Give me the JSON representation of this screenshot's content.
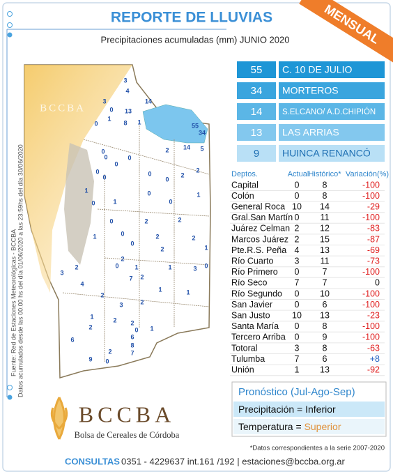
{
  "header": {
    "title": "REPORTE DE LLUVIAS",
    "subtitle": "Precipitaciones acumuladas (mm) JUNIO 2020",
    "badge": "MENSUAL"
  },
  "side_note": {
    "source": "Fuente: Red de Estaciones Meteorológicas - BCCBA",
    "period": "Datos acumulados desde las 00:00 hs del día 01/06/2020 a las 23:59hs del día 30/06/2020"
  },
  "map": {
    "watermark": "BCCBA",
    "stations": [
      "3",
      "4",
      "3",
      "0",
      "13",
      "14",
      "1",
      "8",
      "1",
      "0",
      "55",
      "34",
      "0",
      "0",
      "0",
      "0",
      "2",
      "14",
      "5",
      "0",
      "0",
      "0",
      "2",
      "2",
      "1",
      "0",
      "0",
      "1",
      "0",
      "0",
      "1",
      "0",
      "2",
      "2",
      "1",
      "0",
      "2",
      "2",
      "0",
      "2",
      "1",
      "2",
      "0",
      "1",
      "3",
      "1",
      "3",
      "2",
      "7",
      "2",
      "4",
      "1",
      "3",
      "2",
      "2",
      "1",
      "0",
      "1",
      "2",
      "2",
      "2",
      "0",
      "6",
      "6",
      "8",
      "1",
      "7",
      "2",
      "9",
      "0"
    ]
  },
  "ranking": [
    {
      "value": "55",
      "station": "C. 10 DE JULIO"
    },
    {
      "value": "34",
      "station": "MORTEROS"
    },
    {
      "value": "14",
      "station": "S.ELCANO/ A.D.CHIPIÓN"
    },
    {
      "value": "13",
      "station": "LAS ARRIAS"
    },
    {
      "value": "9",
      "station": "HUINCA RENANCÓ"
    }
  ],
  "table": {
    "headers": [
      "Deptos.",
      "Actual",
      "Histórico*",
      "Variación(%)"
    ],
    "rows": [
      [
        "Capital",
        "0",
        "8",
        "-100"
      ],
      [
        "Colón",
        "0",
        "8",
        "-100"
      ],
      [
        "General Roca",
        "10",
        "14",
        "-29"
      ],
      [
        "Gral.San Martín",
        "0",
        "11",
        "-100"
      ],
      [
        "Juárez Celman",
        "2",
        "12",
        "-83"
      ],
      [
        "Marcos Juárez",
        "2",
        "15",
        "-87"
      ],
      [
        "Pte.R.S. Peña",
        "4",
        "13",
        "-69"
      ],
      [
        "Río Cuarto",
        "3",
        "11",
        "-73"
      ],
      [
        "Río Primero",
        "0",
        "7",
        "-100"
      ],
      [
        "Río Seco",
        "7",
        "7",
        "0"
      ],
      [
        "Río Segundo",
        "0",
        "10",
        "-100"
      ],
      [
        "San Javier",
        "0",
        "6",
        "-100"
      ],
      [
        "San Justo",
        "10",
        "13",
        "-23"
      ],
      [
        "Santa María",
        "0",
        "8",
        "-100"
      ],
      [
        "Tercero Arriba",
        "0",
        "9",
        "-100"
      ],
      [
        "Totoral",
        "3",
        "8",
        "-63"
      ],
      [
        "Tulumba",
        "7",
        "6",
        "+8"
      ],
      [
        "Unión",
        "1",
        "13",
        "-92"
      ]
    ]
  },
  "forecast": {
    "title": "Pronóstico (Jul-Ago-Sep)",
    "precip_label": "Precipitación =",
    "precip_value": "Inferior",
    "temp_label": "Temperatura =",
    "temp_value": "Superior"
  },
  "footnote": "*Datos  correspondientes a la serie 2007-2020",
  "logo": {
    "name": "BCCBA",
    "full_name": "Bolsa de Cereales de Córdoba"
  },
  "footer": {
    "label": "CONSULTAS",
    "contact": "0351 - 4229637 int.161 /192 | estaciones@bccba.org.ar"
  }
}
